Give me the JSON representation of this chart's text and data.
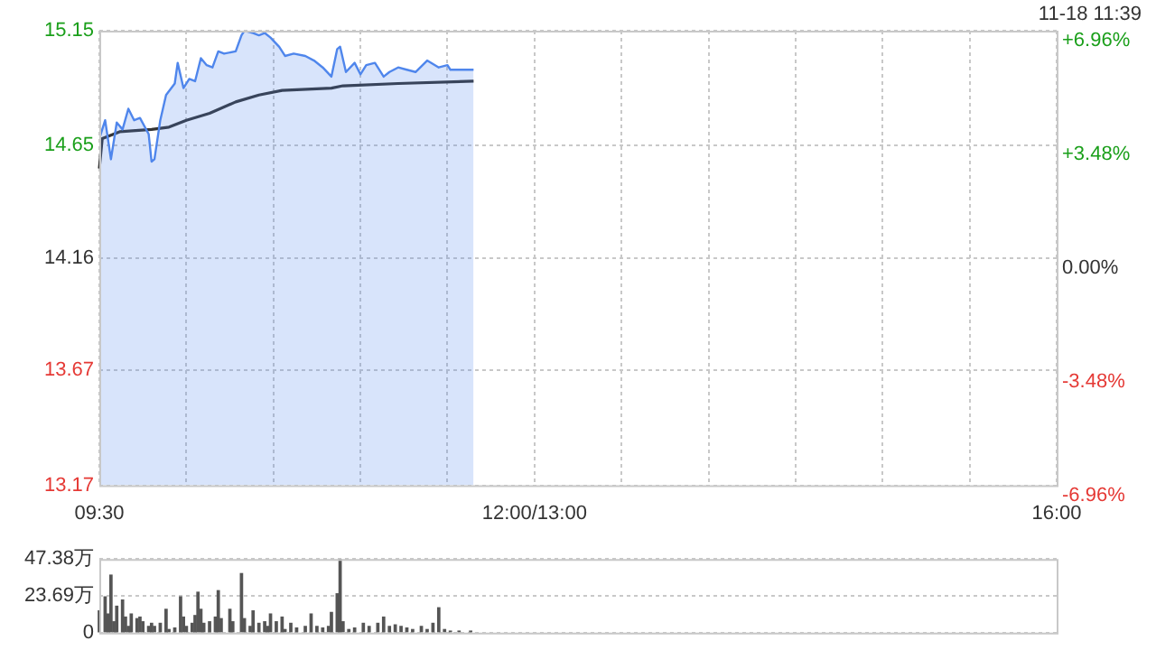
{
  "chart_data": [
    {
      "type": "line",
      "annotations": [
        "11-18 11:39"
      ],
      "categories": [
        "09:30",
        null,
        null,
        null,
        null,
        null,
        null,
        null,
        null,
        null,
        null,
        null,
        null,
        null,
        null,
        null,
        null,
        null,
        null,
        null,
        null,
        null,
        null,
        null,
        null,
        null,
        null,
        null,
        null,
        null,
        null,
        null,
        null,
        null,
        null,
        null,
        null,
        null,
        null,
        null,
        null,
        null,
        null,
        null,
        null,
        null,
        null,
        null,
        null,
        null,
        null,
        null,
        null,
        null,
        null,
        null,
        null,
        null,
        null,
        null,
        null,
        null,
        null,
        null,
        null,
        null,
        null,
        null,
        null,
        null,
        null,
        null,
        null,
        null,
        null,
        null,
        null,
        null,
        null,
        null,
        null,
        null,
        null,
        null,
        null,
        null,
        null,
        null,
        null,
        null,
        null,
        null,
        null,
        null,
        null,
        null,
        null,
        null,
        null,
        null,
        null,
        null,
        null,
        null,
        null,
        null,
        null,
        null,
        null,
        null,
        null,
        null,
        null,
        null,
        null,
        null,
        null,
        null,
        null,
        null,
        null,
        null,
        null,
        null,
        null,
        null,
        null,
        null,
        null,
        null,
        null,
        null,
        null,
        null,
        null,
        null,
        null,
        null,
        null,
        null,
        null,
        null,
        null,
        null,
        null,
        null,
        null,
        null,
        null,
        null,
        "12:00/13:00",
        null,
        null,
        null,
        null,
        null,
        null,
        null,
        null,
        null,
        null,
        null,
        null,
        null,
        null,
        null,
        null,
        null,
        null,
        null,
        null,
        null,
        null,
        null,
        null,
        null,
        null,
        null,
        null,
        null,
        null,
        null,
        null,
        null,
        null,
        null,
        null,
        null,
        null,
        null,
        null,
        null,
        null,
        null,
        null,
        null,
        null,
        null,
        null,
        null,
        null,
        null,
        null,
        null,
        null,
        null,
        null,
        null,
        null,
        null,
        null,
        null,
        null,
        null,
        null,
        null,
        null,
        null,
        null,
        null,
        null,
        null,
        null,
        null,
        null,
        null,
        null,
        null,
        null,
        null,
        null,
        null,
        null,
        null,
        null,
        null,
        null,
        null,
        null,
        null,
        null,
        null,
        null,
        null,
        null,
        null,
        null,
        null,
        null,
        null,
        null,
        null,
        null,
        null,
        null,
        null,
        null,
        null,
        null,
        null,
        null,
        null,
        null,
        null,
        null,
        null,
        null,
        null,
        null,
        null,
        null,
        null,
        null,
        null,
        null,
        null,
        null,
        null,
        null,
        null,
        null,
        null,
        null,
        null,
        null,
        null,
        null,
        null,
        null,
        null,
        null,
        null,
        null,
        null,
        null,
        null,
        null,
        null,
        null,
        null,
        null,
        null,
        null,
        null,
        null,
        null,
        null,
        null,
        null,
        null,
        null,
        null,
        null,
        null,
        null,
        null,
        null,
        null,
        null,
        null,
        null,
        null,
        null,
        null,
        null,
        null,
        null,
        null,
        null,
        null,
        "16:00"
      ],
      "ylim": [
        13.17,
        15.15
      ],
      "yticks": [
        13.17,
        13.67,
        14.16,
        14.65,
        15.15
      ],
      "y2lim": [
        -6.96,
        6.96
      ],
      "y2ticks": [
        {
          "value": -6.96,
          "label": "-6.96%"
        },
        {
          "value": -3.48,
          "label": "-3.48%"
        },
        {
          "value": 0,
          "label": "0.00%"
        },
        {
          "value": 3.48,
          "label": "+3.48%"
        },
        {
          "value": 6.96,
          "label": "+6.96%"
        }
      ],
      "grid": true,
      "legend": false,
      "marker": "none",
      "series": [
        {
          "type": "area",
          "color": "#4f86ec",
          "values": [
            14.68,
            null,
            14.76,
            null,
            14.59,
            null,
            14.75,
            null,
            14.72,
            null,
            14.81,
            null,
            14.76,
            null,
            14.77,
            null,
            null,
            14.7,
            14.58,
            14.59,
            null,
            14.76,
            null,
            14.87,
            null,
            null,
            14.92,
            15.01,
            null,
            14.9,
            null,
            14.94,
            null,
            14.93,
            null,
            15.03,
            null,
            15.0,
            null,
            14.99,
            null,
            15.06,
            null,
            15.05,
            null,
            null,
            null,
            15.06,
            null,
            15.13,
            15.15,
            null,
            null,
            15.14,
            null,
            15.13,
            null,
            15.14,
            null,
            15.12,
            null,
            null,
            15.08,
            null,
            15.04,
            null,
            null,
            15.05,
            null,
            null,
            null,
            15.04,
            null,
            null,
            15.02,
            null,
            null,
            14.99,
            null,
            null,
            14.95,
            null,
            15.07,
            15.08,
            null,
            14.97,
            null,
            null,
            15.01,
            null,
            14.96,
            null,
            15.0,
            null,
            null,
            15.01,
            null,
            null,
            14.95,
            null,
            14.97,
            null,
            null,
            14.99,
            null,
            null,
            14.98,
            null,
            null,
            14.97,
            null,
            null,
            null,
            15.02,
            null,
            null,
            null,
            14.99,
            null,
            null,
            15.0,
            14.98,
            null,
            null,
            null,
            null,
            null,
            null,
            null,
            14.98,
            null,
            null,
            null,
            null,
            null,
            null,
            null,
            null,
            null,
            null,
            null,
            null,
            null,
            null,
            null,
            null,
            null,
            null,
            null,
            null,
            null,
            null,
            null,
            null,
            null,
            null,
            null,
            null,
            null,
            null,
            null,
            null,
            null,
            null,
            null,
            null,
            null,
            null,
            null,
            null,
            null,
            null,
            null,
            null,
            null,
            null,
            null,
            null,
            null,
            null,
            null,
            null,
            null,
            null,
            null,
            null,
            null,
            null,
            null,
            null,
            null,
            null,
            null,
            null,
            null,
            null,
            null,
            null,
            null,
            null,
            null,
            null,
            null,
            null,
            null,
            null,
            null,
            null,
            null,
            null,
            null,
            null,
            null,
            null,
            null,
            null,
            null,
            null,
            null,
            null,
            null,
            null,
            null,
            null,
            null,
            null,
            null,
            null,
            null,
            null,
            null,
            null,
            null,
            null,
            null,
            null,
            null,
            null,
            null,
            null,
            null,
            null,
            null,
            null,
            null,
            null,
            null,
            null,
            null,
            null,
            null,
            null,
            null,
            null,
            null,
            null,
            null,
            null,
            null,
            null,
            null,
            null,
            null,
            null,
            null,
            null,
            null,
            null,
            null,
            null,
            null,
            null,
            null,
            null,
            null,
            null,
            null,
            null,
            null,
            null,
            null,
            null,
            null,
            null,
            null,
            null,
            null,
            null,
            null,
            null,
            null,
            null,
            null,
            null,
            null,
            null,
            null,
            null,
            null,
            null,
            null,
            null,
            null,
            null,
            null,
            null,
            null,
            null,
            null,
            null,
            null,
            null,
            null,
            null,
            null,
            null,
            null,
            null,
            null,
            null,
            null,
            null,
            null,
            null,
            null,
            null,
            null,
            null,
            null,
            null,
            null
          ]
        },
        {
          "type": "line",
          "color": "#333333",
          "values": [
            14.55,
            14.68,
            null,
            null,
            null,
            null,
            null,
            14.71,
            null,
            null,
            null,
            null,
            null,
            null,
            null,
            null,
            null,
            null,
            14.72,
            null,
            null,
            null,
            null,
            null,
            14.73,
            null,
            null,
            null,
            null,
            null,
            14.76,
            null,
            null,
            null,
            null,
            null,
            null,
            null,
            14.79,
            null,
            null,
            null,
            null,
            null,
            null,
            null,
            null,
            14.84,
            null,
            null,
            null,
            null,
            null,
            null,
            null,
            14.87,
            null,
            null,
            null,
            null,
            null,
            null,
            null,
            14.89,
            null,
            null,
            null,
            null,
            null,
            null,
            null,
            null,
            null,
            null,
            null,
            null,
            null,
            null,
            null,
            null,
            14.9,
            null,
            null,
            null,
            14.91,
            null,
            null,
            null,
            null,
            null,
            null,
            null,
            null,
            null,
            null,
            null,
            null,
            null,
            null,
            null,
            null,
            null,
            null,
            14.92,
            null,
            null,
            null,
            null,
            null,
            null,
            null,
            null,
            null,
            null,
            null,
            null,
            null,
            null,
            null,
            null,
            null,
            null,
            null,
            null,
            null,
            null,
            null,
            null,
            null,
            14.93,
            null,
            null,
            null,
            null,
            null,
            null,
            null,
            null,
            null,
            null,
            null,
            null,
            null,
            null,
            null,
            null,
            null,
            null,
            null,
            null,
            null,
            null,
            null,
            null,
            null,
            null,
            null,
            null,
            null,
            null,
            null,
            null,
            null,
            null,
            null,
            null,
            null,
            null,
            null,
            null,
            null,
            null,
            null,
            null,
            null,
            null,
            null,
            null,
            null,
            null,
            null,
            null,
            null,
            null,
            null,
            null,
            null,
            null,
            null,
            null,
            null,
            null,
            null,
            null,
            null,
            null,
            null,
            null,
            null,
            null,
            null,
            null,
            null,
            null,
            null,
            null,
            null,
            null,
            null,
            null,
            null,
            null,
            null,
            null,
            null,
            null,
            null,
            null,
            null,
            null,
            null,
            null,
            null,
            null,
            null,
            null,
            null,
            null,
            null,
            null,
            null,
            null,
            null,
            null,
            null,
            null,
            null,
            null,
            null,
            null,
            null,
            null,
            null,
            null,
            null,
            null,
            null,
            null,
            null,
            null,
            null,
            null,
            null,
            null,
            null,
            null,
            null,
            null,
            null,
            null,
            null,
            null,
            null,
            null,
            null,
            null,
            null,
            null,
            null,
            null,
            null,
            null,
            null,
            null,
            null,
            null,
            null,
            null,
            null,
            null,
            null,
            null,
            null,
            null,
            null,
            null,
            null,
            null,
            null,
            null,
            null,
            null,
            null,
            null,
            null,
            null,
            null,
            null,
            null,
            null,
            null,
            null,
            null,
            null,
            null,
            null,
            null,
            null,
            null,
            null,
            null,
            null,
            null,
            null,
            null,
            null,
            null,
            null,
            null,
            null,
            null,
            null,
            null,
            null,
            null,
            null,
            null,
            null,
            null,
            null,
            null
          ]
        }
      ]
    },
    {
      "type": "bar",
      "tick_labels": "y",
      "categories": [
        null,
        null,
        null,
        null,
        null,
        null,
        null,
        null,
        null,
        null,
        null,
        null,
        null,
        null,
        null,
        null,
        null,
        null,
        null,
        null,
        null,
        null,
        null,
        null,
        null,
        null,
        null,
        null,
        null,
        null,
        null,
        null,
        null,
        null,
        null,
        null,
        null,
        null,
        null,
        null,
        null,
        null,
        null,
        null,
        null,
        null,
        null,
        null,
        null,
        null,
        null,
        null,
        null,
        null,
        null,
        null,
        null,
        null,
        null,
        null,
        null,
        null,
        null,
        null,
        null,
        null,
        null,
        null,
        null,
        null,
        null,
        null,
        null,
        null,
        null,
        null,
        null,
        null,
        null,
        null,
        null,
        null,
        null,
        null,
        null,
        null,
        null,
        null,
        null,
        null,
        null,
        null,
        null,
        null,
        null,
        null,
        null,
        null,
        null,
        null,
        null,
        null,
        null,
        null,
        null,
        null,
        null,
        null,
        null,
        null,
        null,
        null,
        null,
        null,
        null,
        null,
        null,
        null,
        null,
        null,
        null,
        null,
        null,
        null,
        null,
        null,
        null,
        null,
        null,
        null,
        null,
        null,
        null,
        null,
        null,
        null,
        null,
        null,
        null,
        null,
        null,
        null,
        null,
        null,
        null,
        null,
        null,
        null,
        null,
        null,
        null,
        null,
        null,
        null,
        null,
        null,
        null,
        null,
        null,
        null,
        null,
        null,
        null,
        null,
        null,
        null,
        null,
        null,
        null,
        null,
        null,
        null,
        null,
        null,
        null,
        null,
        null,
        null,
        null,
        null,
        null,
        null,
        null,
        null,
        null,
        null,
        null,
        null,
        null,
        null,
        null,
        null,
        null,
        null,
        null,
        null,
        null,
        null,
        null,
        null,
        null,
        null,
        null,
        null,
        null,
        null,
        null,
        null,
        null,
        null,
        null,
        null,
        null,
        null,
        null,
        null,
        null,
        null,
        null,
        null,
        null,
        null,
        null,
        null,
        null,
        null,
        null,
        null,
        null,
        null,
        null,
        null,
        null,
        null,
        null,
        null,
        null,
        null,
        null,
        null,
        null,
        null,
        null,
        null,
        null,
        null,
        null,
        null,
        null,
        null,
        null,
        null,
        null,
        null,
        null,
        null,
        null,
        null,
        null,
        null,
        null,
        null,
        null,
        null,
        null,
        null,
        null,
        null,
        null,
        null,
        null,
        null,
        null,
        null,
        null,
        null,
        null,
        null,
        null,
        null,
        null,
        null,
        null,
        null,
        null,
        null,
        null,
        null,
        null,
        null,
        null,
        null,
        null,
        null,
        null,
        null,
        null,
        null,
        null,
        null,
        null,
        null,
        null,
        null,
        null,
        null,
        null,
        null,
        null,
        null,
        null,
        null,
        null,
        null,
        null,
        null,
        null,
        null,
        null,
        null,
        null,
        null,
        null,
        null,
        null,
        null,
        null,
        null,
        null,
        null,
        null
      ],
      "ylim": [
        0,
        47.38
      ],
      "yticks": [
        0,
        {
          "value": 23.69,
          "label": "23.69万"
        },
        {
          "value": 47.38,
          "label": "47.38万"
        }
      ],
      "grid": "y",
      "legend": false,
      "series": [
        {
          "color": "#555555",
          "values": [
            14,
            null,
            23,
            12,
            37,
            7,
            17,
            null,
            21,
            10,
            4,
            12,
            null,
            9,
            10,
            7,
            null,
            4,
            6,
            4,
            null,
            6,
            null,
            15,
            2,
            null,
            3,
            null,
            23,
            10,
            4,
            null,
            6,
            11,
            26,
            15,
            6,
            null,
            7,
            null,
            10,
            27,
            9,
            null,
            null,
            15,
            7,
            null,
            null,
            38,
            9,
            null,
            4,
            14,
            null,
            6,
            null,
            7,
            4,
            12,
            null,
            7,
            null,
            10,
            2,
            null,
            6,
            null,
            3,
            null,
            null,
            4,
            null,
            12,
            null,
            4,
            null,
            3,
            null,
            4,
            13,
            null,
            25,
            47,
            7,
            null,
            2,
            null,
            3,
            null,
            null,
            6,
            null,
            4,
            null,
            null,
            6,
            null,
            10,
            null,
            4,
            null,
            5,
            null,
            4,
            null,
            3,
            null,
            2,
            null,
            null,
            4,
            null,
            2,
            null,
            6,
            null,
            16,
            null,
            2,
            null,
            1,
            null,
            null,
            1,
            null,
            null,
            null,
            1,
            null,
            null,
            null,
            null,
            null,
            null,
            null,
            null,
            null,
            null,
            null,
            null,
            null,
            null,
            null,
            null,
            null,
            null,
            null,
            null,
            null,
            null,
            null,
            null,
            null,
            null,
            null,
            null,
            null,
            null,
            null,
            null,
            null,
            null,
            null,
            null,
            null,
            null,
            null,
            null,
            null,
            null,
            null,
            null,
            null,
            null,
            null,
            null,
            null,
            null,
            null,
            null,
            null,
            null,
            null,
            null,
            null,
            null,
            null,
            null,
            null,
            null,
            null,
            null,
            null,
            null,
            null,
            null,
            null,
            null,
            null,
            null,
            null,
            null,
            null,
            null,
            null,
            null,
            null,
            null,
            null,
            null,
            null,
            null,
            null,
            null,
            null,
            null,
            null,
            null,
            null,
            null,
            null,
            null,
            null,
            null,
            null,
            null,
            null,
            null,
            null,
            null,
            null,
            null,
            null,
            null,
            null,
            null,
            null,
            null,
            null,
            null,
            null,
            null,
            null,
            null,
            null,
            null,
            null,
            null,
            null,
            null,
            null,
            null,
            null,
            null,
            null,
            null,
            null,
            null,
            null,
            null,
            null,
            null,
            null,
            null,
            null,
            null,
            null,
            null,
            null,
            null,
            null,
            null,
            null,
            null,
            null,
            null,
            null,
            null,
            null,
            null,
            null,
            null,
            null,
            null,
            null,
            null,
            null,
            null,
            null,
            null,
            null,
            null,
            null,
            null,
            null,
            null,
            null,
            null,
            null,
            null,
            null,
            null,
            null,
            null,
            null,
            null,
            null,
            null,
            null,
            null,
            null,
            null,
            null,
            null,
            null,
            null,
            null,
            null,
            null,
            null,
            null,
            null,
            null,
            null,
            null,
            null,
            null,
            null,
            null,
            null
          ]
        }
      ]
    }
  ]
}
